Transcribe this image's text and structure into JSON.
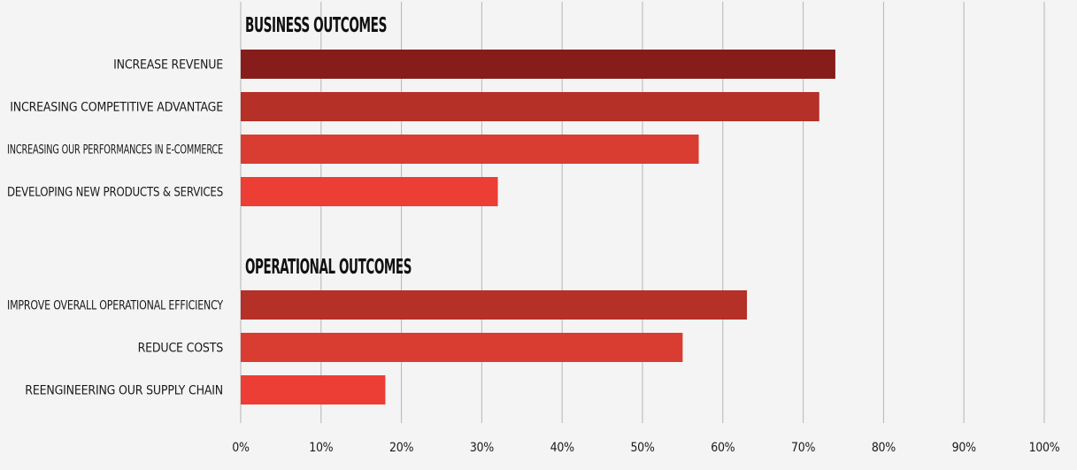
{
  "chart_data": {
    "type": "bar",
    "orientation": "horizontal",
    "xlim": [
      0,
      100
    ],
    "x_ticks": [
      "0%",
      "10%",
      "20%",
      "30%",
      "40%",
      "50%",
      "60%",
      "70%",
      "80%",
      "90%",
      "100%"
    ],
    "grid": true,
    "groups": [
      {
        "title": "BUSINESS OUTCOMES",
        "bars": [
          {
            "label": "INCREASE REVENUE",
            "value": 74,
            "color": "#861d1a"
          },
          {
            "label": "INCREASING COMPETITIVE ADVANTAGE",
            "value": 72,
            "color": "#b53027"
          },
          {
            "label": "INCREASING OUR PERFORMANCES IN E-COMMERCE",
            "value": 57,
            "color": "#d93c31"
          },
          {
            "label": "DEVELOPING NEW PRODUCTS & SERVICES",
            "value": 32,
            "color": "#ec3e34"
          }
        ]
      },
      {
        "title": "OPERATIONAL OUTCOMES",
        "bars": [
          {
            "label": "IMPROVE OVERALL OPERATIONAL EFFICIENCY",
            "value": 63,
            "color": "#b53027"
          },
          {
            "label": "REDUCE COSTS",
            "value": 55,
            "color": "#d93c31"
          },
          {
            "label": "REENGINEERING OUR SUPPLY CHAIN",
            "value": 18,
            "color": "#ec3e34"
          }
        ]
      }
    ]
  }
}
